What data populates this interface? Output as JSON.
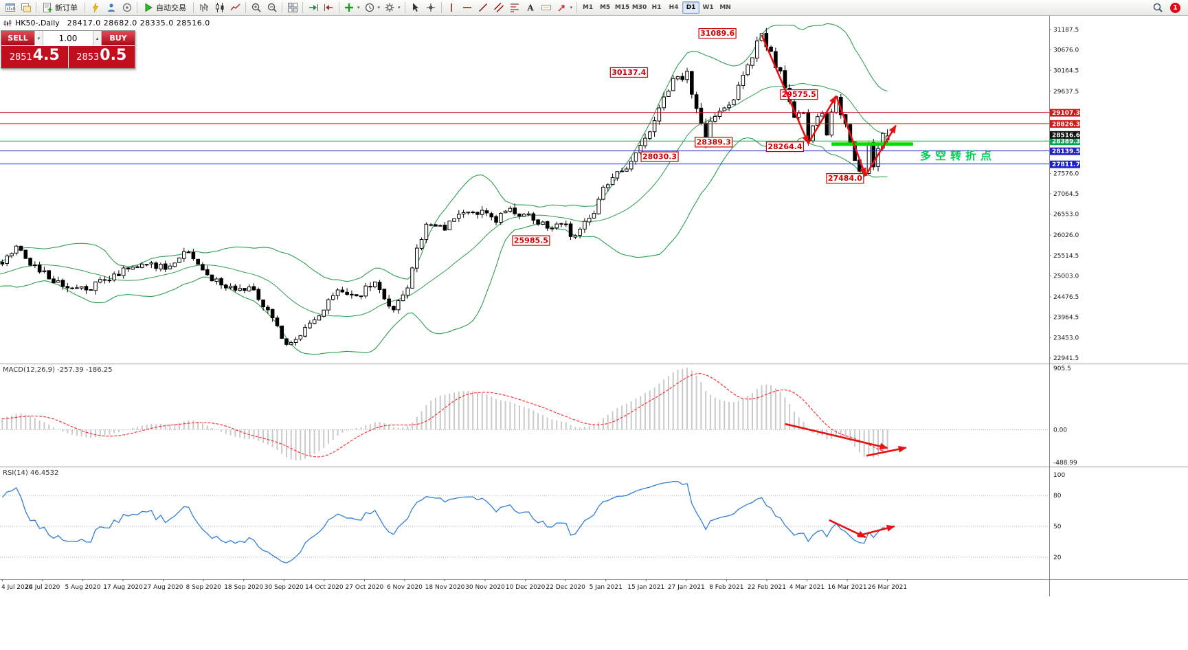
{
  "toolbar": {
    "new_order_label": "新订单",
    "autotrading_label": "自动交易",
    "timeframes": [
      "M1",
      "M5",
      "M15",
      "M30",
      "H1",
      "H4",
      "D1",
      "W1",
      "MN"
    ],
    "active_timeframe": "D1",
    "notification_count": "1"
  },
  "chart_header": {
    "symbol_title": "HK50-,Daily",
    "ohlc": "28417.0 28682.0 28335.0 28516.0"
  },
  "trade_panel": {
    "sell_label": "SELL",
    "buy_label": "BUY",
    "volume": "1.00",
    "bid_small": "2851",
    "bid_big": "4.5",
    "ask_small": "2853",
    "ask_big": "0.5"
  },
  "indicators": {
    "macd_label": "MACD(12,26,9) -257.39 -186.25",
    "rsi_label": "RSI(14) 46.4532"
  },
  "chart_data": {
    "type": "candlestick",
    "symbol": "HK50-",
    "timeframe": "Daily",
    "current_ohlc": {
      "open": 28417.0,
      "high": 28682.0,
      "low": 28335.0,
      "close": 28516.0
    },
    "price_axis": {
      "max": 31187.5,
      "min": 22941.5,
      "tick_labels": [
        "31187.5",
        "30676.0",
        "30164.5",
        "29637.5",
        "27576.0",
        "27064.5",
        "26553.0",
        "26026.0",
        "25514.5",
        "25003.0",
        "24476.5",
        "23964.5",
        "23453.0",
        "22941.5"
      ],
      "last_price_label": "28516.6"
    },
    "x_axis_labels": [
      "4 Jul 2020",
      "24 Jul 2020",
      "5 Aug 2020",
      "17 Aug 2020",
      "27 Aug 2020",
      "8 Sep 2020",
      "18 Sep 2020",
      "30 Sep 2020",
      "14 Oct 2020",
      "27 Oct 2020",
      "6 Nov 2020",
      "18 Nov 2020",
      "30 Nov 2020",
      "10 Dec 2020",
      "22 Dec 2020",
      "5 Jan 2021",
      "15 Jan 2021",
      "27 Jan 2021",
      "8 Feb 2021",
      "22 Feb 2021",
      "4 Mar 2021",
      "16 Mar 2021",
      "26 Mar 2021"
    ],
    "bollinger": {
      "period": 20,
      "deviation": 2,
      "color": "#2e9e4f"
    },
    "horizontal_lines": [
      {
        "price": 29107.3,
        "label": "29107.3",
        "color": "#d01818"
      },
      {
        "price": 28826.3,
        "label": "28826.3",
        "color": "#d01818"
      },
      {
        "price": 28389.3,
        "label": "28389.3",
        "color": "#00a651"
      },
      {
        "price": 28139.5,
        "label": "28139.5",
        "color": "#2020cc"
      },
      {
        "price": 27811.7,
        "label": "27811.7",
        "color": "#2020cc"
      }
    ],
    "support_zone": {
      "price": 28310,
      "i1": 178,
      "i2": 195.5,
      "color": "#00dd00"
    },
    "price_callouts": [
      {
        "text": "31089.6",
        "i": 153.5,
        "price": 31090
      },
      {
        "text": "30137.4",
        "i": 134.5,
        "price": 30110
      },
      {
        "text": "29575.5",
        "i": 171,
        "price": 29555
      },
      {
        "text": "28389.3",
        "i": 152.7,
        "price": 28360
      },
      {
        "text": "28264.4",
        "i": 168,
        "price": 28245
      },
      {
        "text": "28030.3",
        "i": 141.1,
        "price": 27995
      },
      {
        "text": "27484.0",
        "i": 180.9,
        "price": 27450
      },
      {
        "text": "25985.5",
        "i": 113.5,
        "price": 25890
      }
    ],
    "trend_arrows": [
      {
        "i1": 163,
        "p1": 31050,
        "i2": 173,
        "p2": 28330
      },
      {
        "i1": 173,
        "p1": 28330,
        "i2": 179,
        "p2": 29520
      },
      {
        "i1": 179,
        "p1": 29520,
        "i2": 185.3,
        "p2": 27520
      },
      {
        "i1": 185.3,
        "p1": 27520,
        "i2": 191.8,
        "p2": 28780
      }
    ],
    "annotation": {
      "text": "多空转折点",
      "i": 197,
      "price": 27930,
      "color": "#00cc55"
    },
    "macd_panel": {
      "axis": {
        "max": 905.5,
        "min": -488.99,
        "max_label": "905.5",
        "zero_label": "0.00",
        "min_label": "-488.99"
      },
      "histogram_color": "#c9c9c9",
      "signal_color": "#ff2020",
      "arrows": [
        {
          "i1": 168,
          "fy1": 0.585,
          "i2": 190,
          "fy2": 0.823
        },
        {
          "i1": 185.5,
          "fy1": 0.9,
          "i2": 194,
          "fy2": 0.82
        }
      ]
    },
    "rsi_panel": {
      "levels": [
        80,
        50,
        20
      ],
      "axis_labels": [
        "100",
        "80",
        "50",
        "20"
      ],
      "line_color": "#2f7ed8",
      "arrows": [
        {
          "i1": 177.5,
          "fy1": 0.469,
          "i2": 185.3,
          "fy2": 0.623
        },
        {
          "i1": 183.5,
          "fy1": 0.611,
          "i2": 191.5,
          "fy2": 0.525
        }
      ]
    },
    "series_synthesis": {
      "lead_in": 30,
      "total": 221,
      "visible": 191,
      "seed": 11,
      "close_anchors": [
        [
          0,
          24400
        ],
        [
          10,
          24800
        ],
        [
          20,
          25050
        ],
        [
          30,
          25300
        ],
        [
          33,
          25750
        ],
        [
          38,
          25100
        ],
        [
          44,
          24700
        ],
        [
          48,
          24650
        ],
        [
          54,
          25050
        ],
        [
          60,
          25300
        ],
        [
          66,
          25250
        ],
        [
          70,
          25600
        ],
        [
          73,
          25150
        ],
        [
          78,
          24700
        ],
        [
          84,
          24650
        ],
        [
          88,
          23950
        ],
        [
          91,
          23280
        ],
        [
          94,
          23500
        ],
        [
          98,
          24000
        ],
        [
          102,
          24650
        ],
        [
          106,
          24500
        ],
        [
          110,
          24850
        ],
        [
          114,
          24150
        ],
        [
          117,
          24700
        ],
        [
          119,
          25700
        ],
        [
          121,
          26300
        ],
        [
          125,
          26150
        ],
        [
          128,
          26550
        ],
        [
          133,
          26650
        ],
        [
          136,
          26350
        ],
        [
          139,
          26700
        ],
        [
          144,
          26400
        ],
        [
          147,
          26200
        ],
        [
          151,
          26300
        ],
        [
          152,
          25990
        ],
        [
          157,
          26570
        ],
        [
          159,
          27230
        ],
        [
          161,
          27470
        ],
        [
          165,
          27880
        ],
        [
          167,
          28280
        ],
        [
          170,
          28900
        ],
        [
          173,
          29640
        ],
        [
          174,
          29960
        ],
        [
          176,
          29930
        ],
        [
          177,
          30140
        ],
        [
          181,
          28300
        ],
        [
          182,
          28890
        ],
        [
          186,
          29290
        ],
        [
          189,
          30040
        ],
        [
          193,
          31085
        ],
        [
          195,
          30640
        ],
        [
          198,
          29720
        ],
        [
          200,
          28980
        ],
        [
          202,
          29100
        ],
        [
          203,
          28400
        ],
        [
          204,
          28770
        ],
        [
          206,
          29080
        ],
        [
          207,
          28540
        ],
        [
          209,
          29500
        ],
        [
          210,
          29050
        ],
        [
          212,
          28360
        ],
        [
          213,
          27900
        ],
        [
          215,
          27560
        ],
        [
          216,
          28340
        ],
        [
          217,
          27740
        ],
        [
          218,
          28200
        ],
        [
          219,
          28580
        ],
        [
          220,
          28516
        ]
      ],
      "high_overrides": {
        "193": 31089.6
      },
      "low_overrides": {
        "91": 23235,
        "215": 27484.0
      },
      "last_ohlc": [
        28417.0,
        28682.0,
        28335.0,
        28516.0
      ]
    }
  }
}
